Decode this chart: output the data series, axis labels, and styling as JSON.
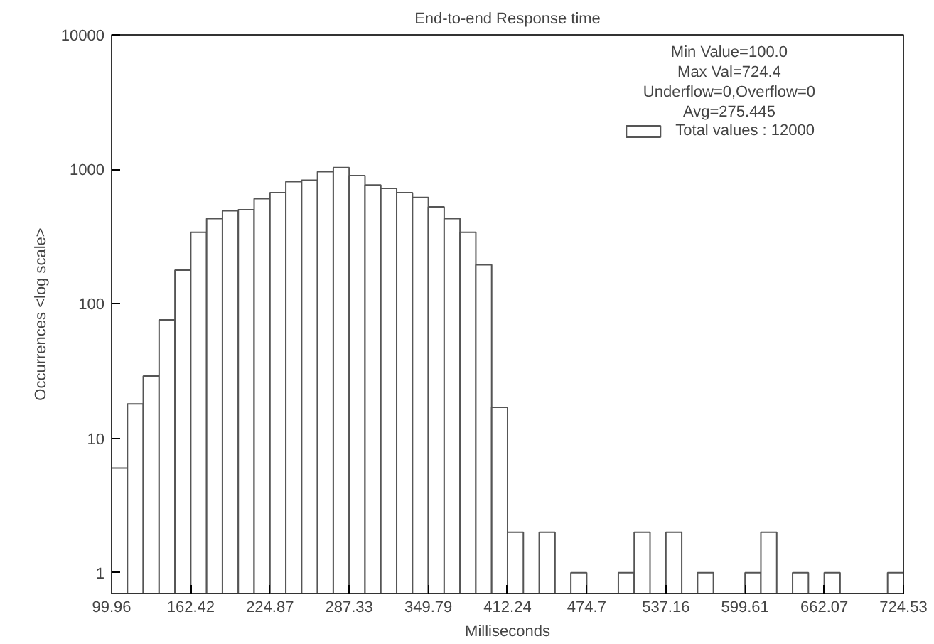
{
  "chart_data": {
    "type": "histogram",
    "title": "End-to-end Response time",
    "xlabel": "Milliseconds",
    "ylabel": "Occurrences <log scale>",
    "bins": [
      99.96,
      112.45,
      124.94,
      137.43,
      149.93,
      162.42,
      174.91,
      187.4,
      199.89,
      212.38,
      224.87,
      237.37,
      249.86,
      262.35,
      274.84,
      287.33,
      299.82,
      312.31,
      324.8,
      337.3,
      349.79,
      362.28,
      374.77,
      387.26,
      399.75,
      412.24,
      424.73,
      437.23,
      449.72,
      462.21,
      474.7,
      487.19,
      499.68,
      512.17,
      524.66,
      537.16,
      549.65,
      562.14,
      574.63,
      587.12,
      599.61,
      612.1,
      624.6,
      637.09,
      649.58,
      662.07,
      674.56,
      687.05,
      699.54,
      712.03,
      724.53
    ],
    "series": [
      {
        "name": "Total values : 12000",
        "color": "#ffffff",
        "values": [
          6,
          18,
          29,
          76,
          178,
          340,
          430,
          492,
          500,
          605,
          670,
          810,
          830,
          960,
          1030,
          897,
          765,
          722,
          670,
          617,
          525,
          430,
          340,
          195,
          17,
          2,
          null,
          2,
          null,
          1,
          null,
          null,
          1,
          2,
          null,
          2,
          null,
          1,
          null,
          null,
          1,
          2,
          null,
          1,
          null,
          1,
          null,
          null,
          null,
          1
        ]
      }
    ],
    "annotations": [
      "Min Value=100.0",
      "Max Val=724.4",
      "Underflow=0,Overflow=0",
      "Avg=275.445"
    ],
    "xlim": [
      99.96,
      724.53
    ],
    "ylim": [
      0.7,
      10000
    ],
    "xticks": [
      99.96,
      162.42,
      224.87,
      287.33,
      349.79,
      412.24,
      474.7,
      537.16,
      599.61,
      662.07,
      724.53
    ],
    "yticks": [
      1,
      10,
      100,
      1000,
      10000
    ],
    "log": true,
    "grid": false,
    "legend": "top right"
  }
}
